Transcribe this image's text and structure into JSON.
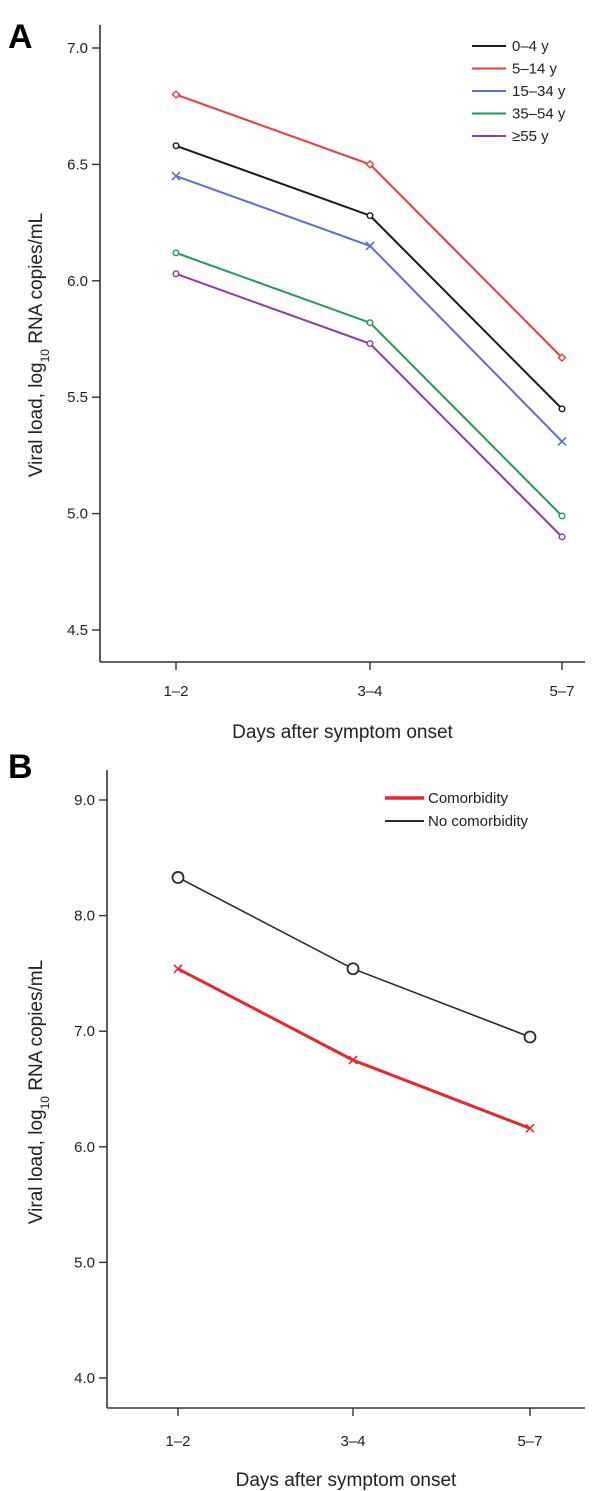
{
  "chart_data": [
    {
      "panel": "A",
      "type": "line",
      "categories": [
        "1–2",
        "3–4",
        "5–7"
      ],
      "xlabel": "Days after symptom onset",
      "ylabel": {
        "pre": "Viral load, log",
        "sub": "10",
        "post": " RNA copies/mL"
      },
      "ylim": [
        4.5,
        7.0
      ],
      "yticks": [
        "4.5",
        "5.0",
        "5.5",
        "6.0",
        "6.5",
        "7.0"
      ],
      "legend_position": "top-right",
      "series": [
        {
          "name": "0–4 y",
          "color": "#1a1a1a",
          "marker": "dot",
          "values": [
            6.58,
            6.28,
            5.45
          ]
        },
        {
          "name": "5–14 y",
          "color": "#ee3b3b",
          "marker": "diamond",
          "values": [
            6.8,
            6.5,
            5.67
          ]
        },
        {
          "name": "15–34 y",
          "color": "#5b6fd6",
          "marker": "x",
          "values": [
            6.45,
            6.15,
            5.31
          ]
        },
        {
          "name": "35–54 y",
          "color": "#1f9e55",
          "marker": "dot",
          "values": [
            6.12,
            5.82,
            4.99
          ]
        },
        {
          "name": "≥55 y",
          "color": "#8c3fa5",
          "marker": "dot",
          "values": [
            6.03,
            5.73,
            4.9
          ]
        }
      ]
    },
    {
      "panel": "B",
      "type": "line",
      "categories": [
        "1–2",
        "3–4",
        "5–7"
      ],
      "xlabel": "Days after symptom onset",
      "ylabel": {
        "pre": "Viral load, log",
        "sub": "10",
        "post": " RNA copies/mL"
      },
      "ylim": [
        4.0,
        9.0
      ],
      "yticks": [
        "4.0",
        "5.0",
        "6.0",
        "7.0",
        "8.0",
        "9.0"
      ],
      "legend_position": "top-right",
      "series": [
        {
          "name": "Comorbidity",
          "color": "#e8272b",
          "marker": "x",
          "values": [
            7.54,
            6.75,
            6.16
          ]
        },
        {
          "name": "No comorbidity",
          "color": "#2b2b2b",
          "marker": "circle",
          "values": [
            8.33,
            7.54,
            6.95
          ]
        }
      ]
    }
  ]
}
